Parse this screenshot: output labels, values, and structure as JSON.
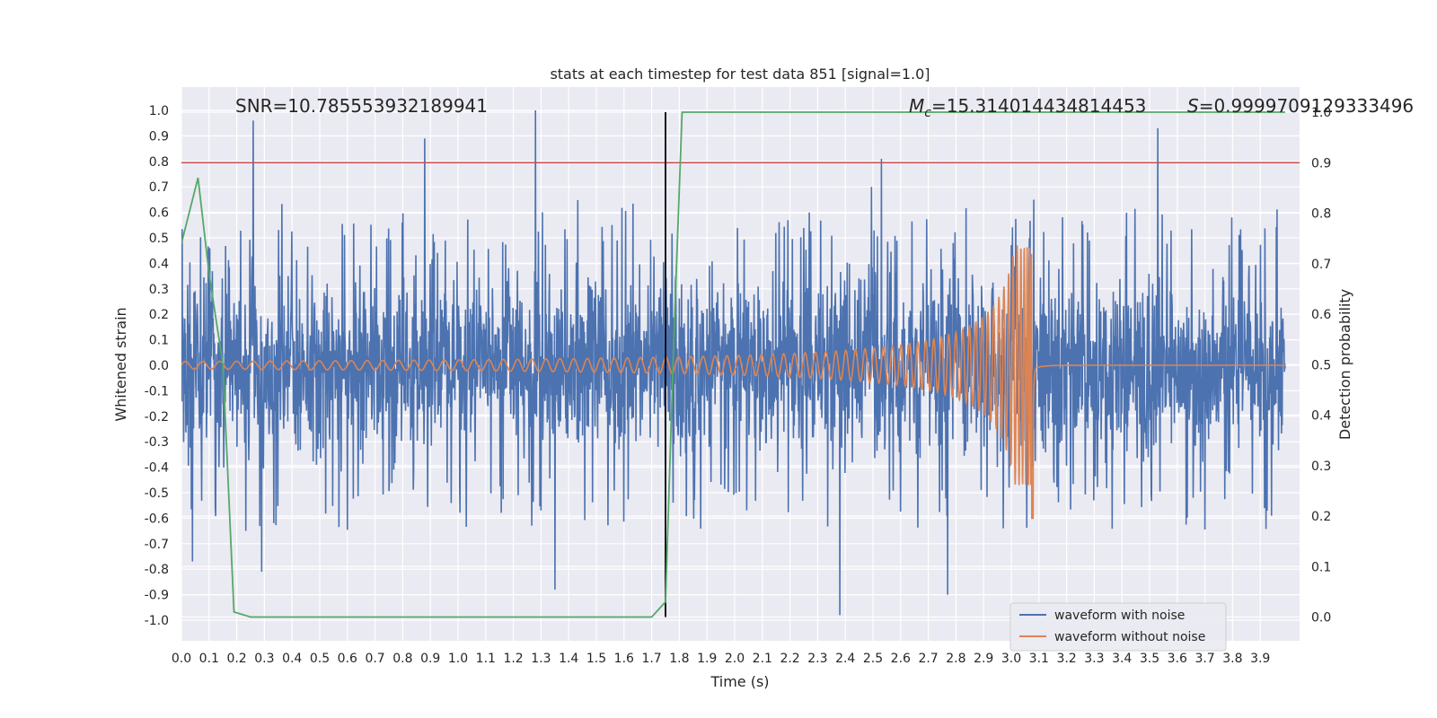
{
  "chart_data": {
    "type": "line",
    "title": "stats at each timestep for test data 851 [signal=1.0]",
    "xlabel": "Time (s)",
    "ylabel_left": "Whitened strain",
    "ylabel_right": "Detection probability",
    "xlim": [
      0.0,
      3.99
    ],
    "ylim_left": [
      -1.07,
      1.1
    ],
    "ylim_right": [
      -0.05,
      1.05
    ],
    "grid": true,
    "legend_position": "lower-right",
    "xticks": [
      "0.0",
      "0.1",
      "0.2",
      "0.3",
      "0.4",
      "0.5",
      "0.6",
      "0.7",
      "0.8",
      "0.9",
      "1.0",
      "1.1",
      "1.2",
      "1.3",
      "1.4",
      "1.5",
      "1.6",
      "1.7",
      "1.8",
      "1.9",
      "2.0",
      "2.1",
      "2.2",
      "2.3",
      "2.4",
      "2.5",
      "2.6",
      "2.7",
      "2.8",
      "2.9",
      "3.0",
      "3.1",
      "3.2",
      "3.3",
      "3.4",
      "3.5",
      "3.6",
      "3.7",
      "3.8",
      "3.9"
    ],
    "yticks_left": [
      "1.0",
      "0.9",
      "0.8",
      "0.7",
      "0.6",
      "0.5",
      "0.4",
      "0.3",
      "0.2",
      "0.1",
      "0.0",
      "-0.1",
      "-0.2",
      "-0.3",
      "-0.4",
      "-0.5",
      "-0.6",
      "-0.7",
      "-0.8",
      "-0.9",
      "-1.0"
    ],
    "yticks_right": [
      "1.0",
      "0.9",
      "0.8",
      "0.7",
      "0.6",
      "0.5",
      "0.4",
      "0.3",
      "0.2",
      "0.1",
      "0.0"
    ],
    "annotations": {
      "snr": "SNR=10.785553932189941",
      "mc_symbol": "M",
      "mc_subscript": "c",
      "mc_value": "=15.314014434814453",
      "s_symbol": "S",
      "s_value": "=0.9999709129333496"
    },
    "threshold": {
      "y_right": 0.9,
      "color": "#c44e52"
    },
    "vertical_marker": {
      "x": 1.75,
      "y_right_range": [
        0.0,
        1.0
      ],
      "color": "#000000"
    },
    "series": [
      {
        "name": "waveform with noise",
        "axis": "left",
        "color": "#4c72b0",
        "description_stats": {
          "peak_max": 1.0,
          "peak_min": -0.98,
          "typical_amplitude": 0.45
        },
        "peaks": [
          [
            0.26,
            0.96
          ],
          [
            0.88,
            0.89
          ],
          [
            1.28,
            1.0
          ],
          [
            2.53,
            0.81
          ],
          [
            3.53,
            0.93
          ],
          [
            0.29,
            -0.81
          ],
          [
            1.35,
            -0.88
          ],
          [
            2.38,
            -0.98
          ],
          [
            2.77,
            -0.9
          ],
          [
            0.04,
            -0.77
          ]
        ]
      },
      {
        "name": "waveform without noise",
        "axis": "left",
        "color": "#dd8452",
        "chirp": {
          "start": 0.0,
          "merger": 3.08,
          "end_amplitude": 0.47,
          "start_amplitude": 0.015,
          "min_at_merger": -0.6
        }
      },
      {
        "name": "",
        "axis": "right",
        "color": "#55a868",
        "x": [
          0.0,
          0.06,
          0.1,
          0.15,
          0.19,
          0.25,
          0.4,
          0.6,
          0.8,
          1.0,
          1.2,
          1.3,
          1.4,
          1.55,
          1.7,
          1.75,
          1.78,
          1.81,
          1.85,
          2.0,
          2.5,
          3.0,
          3.5,
          3.99
        ],
        "y": [
          0.74,
          0.87,
          0.68,
          0.5,
          0.01,
          0.0,
          0.0,
          0.0,
          0.0,
          0.0,
          0.0,
          0.0,
          0.0,
          0.0,
          0.0,
          0.03,
          0.55,
          1.0,
          1.0,
          1.0,
          1.0,
          1.0,
          1.0,
          1.0
        ]
      }
    ]
  }
}
